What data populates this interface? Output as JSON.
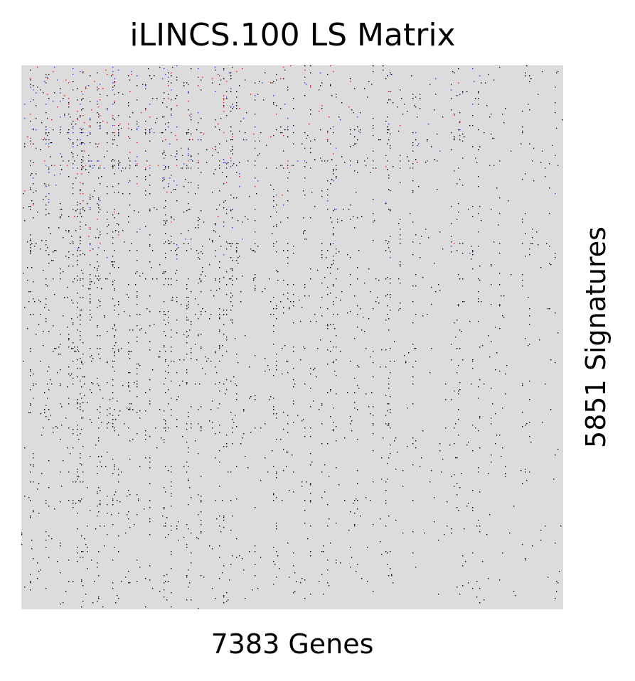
{
  "chart_data": {
    "type": "heatmap",
    "title": "iLINCS.100 LS Matrix",
    "xlabel": "7383 Genes",
    "ylabel": "5851 Signatures",
    "n_columns": 7383,
    "n_rows": 5851,
    "grid": false,
    "legend": false,
    "background_color": "#dcdcdc",
    "value_colors": {
      "present": "#000000",
      "up": "#d1202c",
      "down": "#2c3cc8"
    },
    "density_profile": {
      "description_values": "fraction of filled cells by region (rows top to bottom, columns left to right)",
      "top_left": 0.35,
      "top_right": 0.08,
      "bottom_left": 0.1,
      "bottom_right": 0.05
    }
  }
}
